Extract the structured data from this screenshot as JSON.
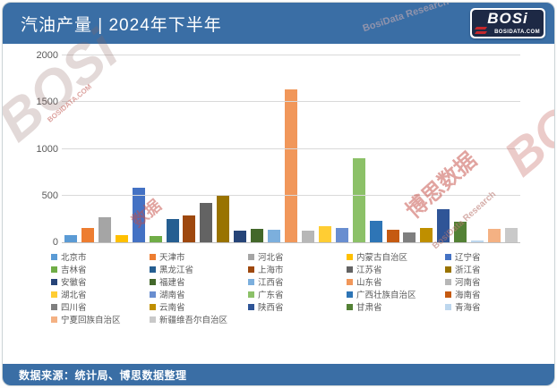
{
  "header": {
    "title": "汽油产量 | 2024年下半年",
    "logo": {
      "text": "BOSi",
      "site": "BOSIDATA.COM"
    }
  },
  "footer": {
    "source": "数据来源：统计局、博思数据整理"
  },
  "watermarks": {
    "big_left": "BOSi",
    "site_small": "BOSIDATA.COM",
    "big_right": "BOSi",
    "cn_mid": "博思数据",
    "research": "BosiData Research",
    "cn_small": "数据",
    "top_text": "BosiData Research"
  },
  "chart_data": {
    "type": "bar",
    "title": "汽油产量 | 2024年下半年",
    "xlabel": "",
    "ylabel": "",
    "ylim": [
      0,
      2000
    ],
    "yticks": [
      0,
      500,
      1000,
      1500,
      2000
    ],
    "grid": true,
    "legend_position": "bottom",
    "categories": [
      "北京市",
      "天津市",
      "河北省",
      "内蒙古自治区",
      "辽宁省",
      "吉林省",
      "黑龙江省",
      "上海市",
      "江苏省",
      "浙江省",
      "安徽省",
      "福建省",
      "江西省",
      "山东省",
      "河南省",
      "湖北省",
      "湖南省",
      "广东省",
      "广西壮族自治区",
      "海南省",
      "四川省",
      "云南省",
      "陕西省",
      "甘肃省",
      "青海省",
      "宁夏回族自治区",
      "新疆维吾尔自治区"
    ],
    "values": [
      80,
      155,
      270,
      80,
      580,
      70,
      245,
      285,
      425,
      495,
      120,
      145,
      130,
      1635,
      120,
      175,
      155,
      900,
      230,
      135,
      105,
      150,
      355,
      220,
      20,
      140,
      150
    ],
    "colors": [
      "#5B9BD5",
      "#ED7D31",
      "#A5A5A5",
      "#FFC000",
      "#4472C4",
      "#70AD47",
      "#255E91",
      "#9E480E",
      "#636363",
      "#997300",
      "#264478",
      "#43682B",
      "#7CAFDD",
      "#F1975A",
      "#B7B7B7",
      "#FFCD33",
      "#698ED0",
      "#8CC168",
      "#2E75B6",
      "#C55A11",
      "#7F7F7F",
      "#BF8F00",
      "#2F5597",
      "#538135",
      "#BDD7EE",
      "#F4B183",
      "#C9C9C9"
    ]
  }
}
